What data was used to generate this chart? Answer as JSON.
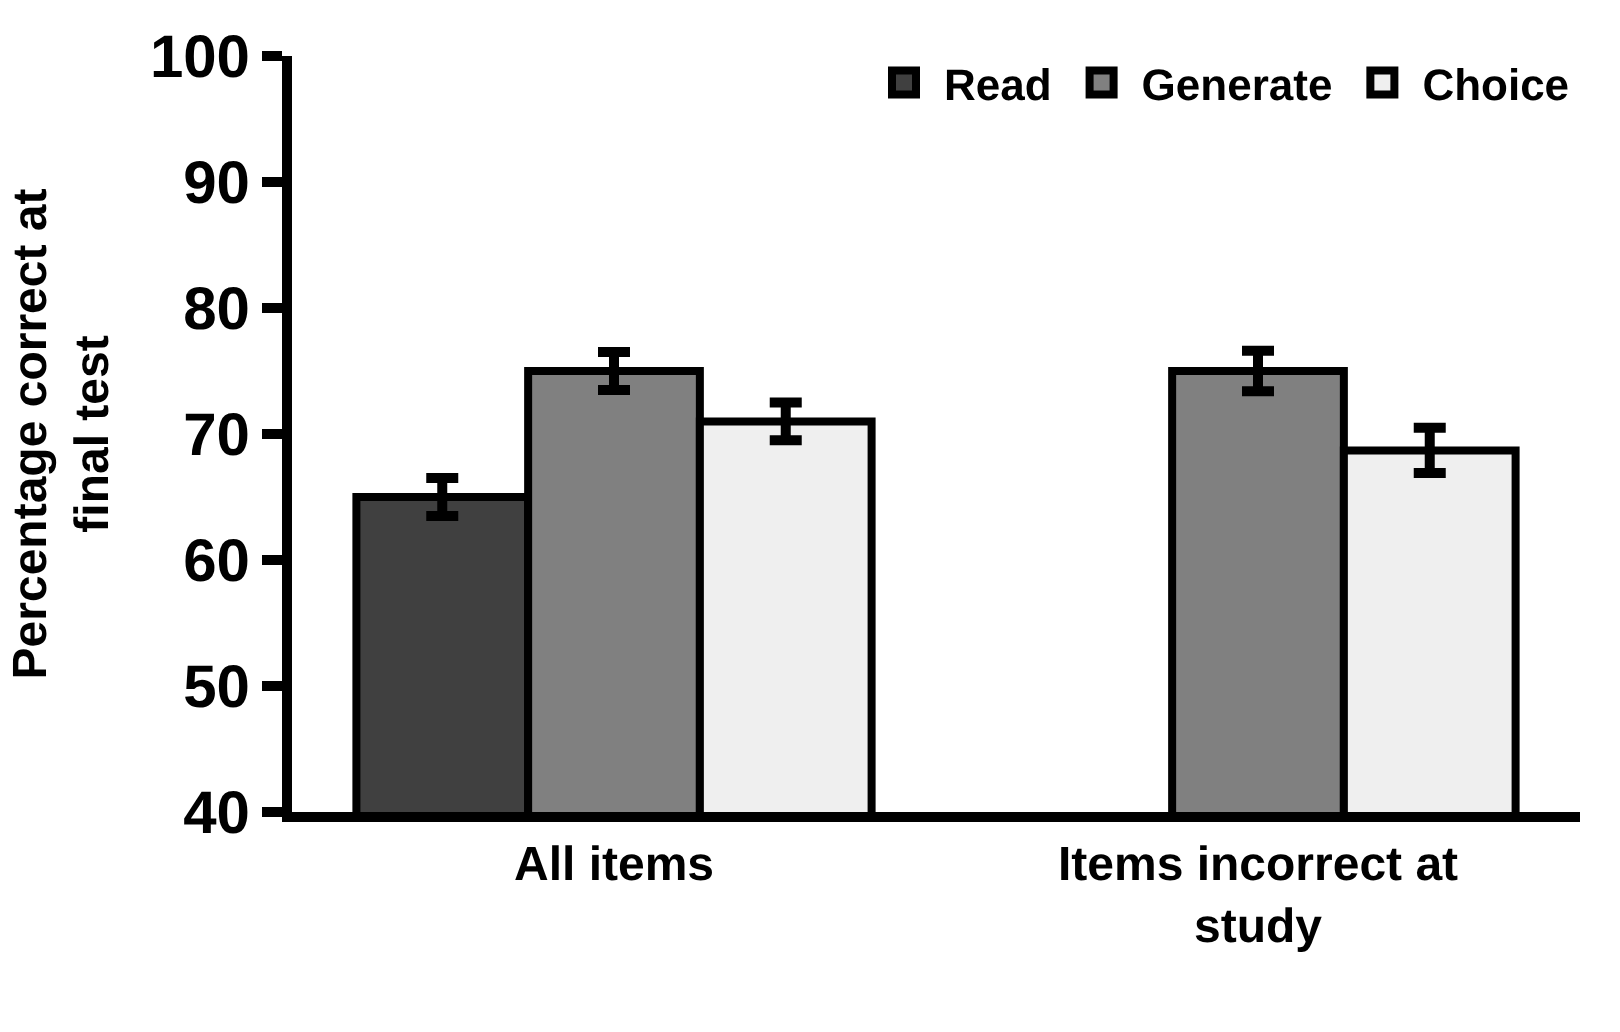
{
  "chart_data": {
    "type": "bar",
    "ylabel": "Percentage correct at final test",
    "categories": [
      "All items",
      "Items incorrect at study"
    ],
    "series": [
      {
        "name": "Read",
        "color": "#404040",
        "values": [
          65,
          null
        ],
        "errors": [
          1.5,
          null
        ]
      },
      {
        "name": "Generate",
        "color": "#808080",
        "values": [
          75,
          75
        ],
        "errors": [
          1.5,
          1.6
        ]
      },
      {
        "name": "Choice",
        "color": "#efefef",
        "values": [
          71,
          68.7
        ],
        "errors": [
          1.5,
          1.8
        ]
      }
    ],
    "ylim": [
      40,
      100
    ],
    "yticks": [
      40,
      50,
      60,
      70,
      80,
      90,
      100
    ],
    "legend": "top right"
  }
}
